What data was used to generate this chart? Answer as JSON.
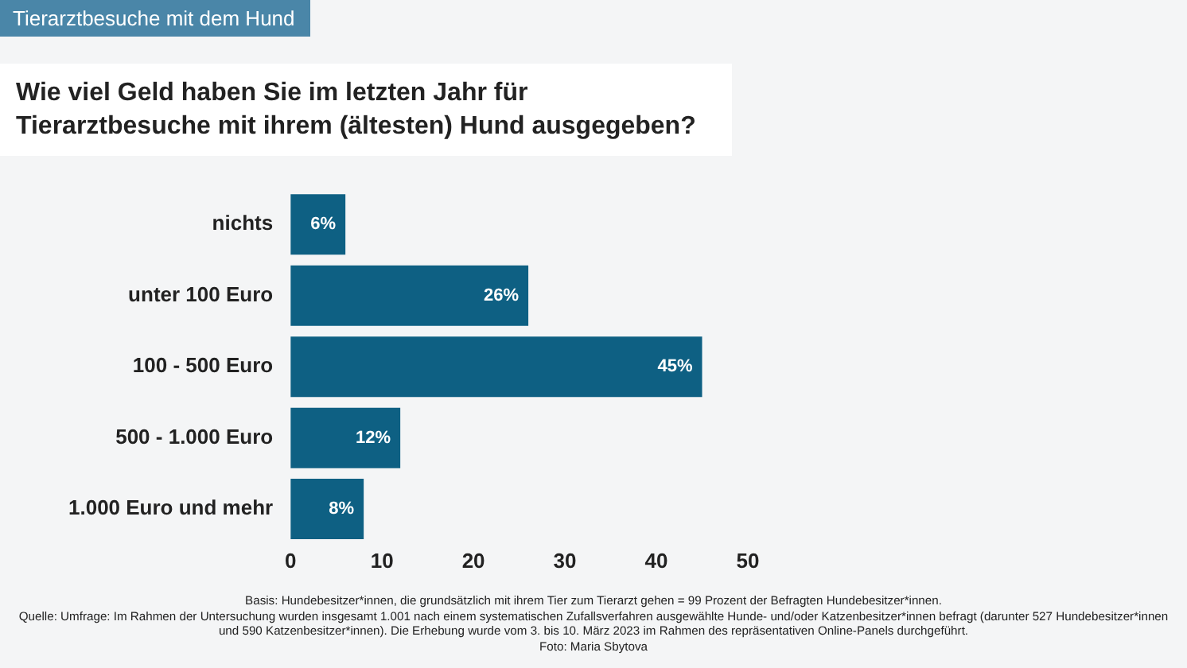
{
  "chart_data": {
    "type": "bar",
    "orientation": "horizontal",
    "subtitle": "Tierarztbesuche mit dem Hund",
    "title": "Wie viel Geld haben Sie im letzten Jahr für Tierarztbesuche mit ihrem (ältesten) Hund ausgegeben?",
    "categories": [
      "nichts",
      "unter 100 Euro",
      "100 - 500 Euro",
      "500 - 1.000 Euro",
      "1.000 Euro und mehr"
    ],
    "values": [
      6,
      26,
      45,
      12,
      8
    ],
    "value_labels": [
      "6%",
      "26%",
      "45%",
      "12%",
      "8%"
    ],
    "color": "#0e6083",
    "xlim": [
      0,
      50
    ],
    "xticks": [
      0,
      10,
      20,
      30,
      40,
      50
    ],
    "annotations": [
      "Basis: Hundebesitzer*innen, die grundsätzlich mit ihrem Tier zum Tierarzt gehen = 99 Prozent der Befragten Hundebesitzer*innen.",
      "Quelle: Umfrage: Im Rahmen der Untersuchung wurden insgesamt 1.001 nach einem systematischen Zufallsverfahren ausgewählte Hunde- und/oder Katzenbesitzer*innen befragt (darunter 527 Hundebesitzer*innen und 590 Katzenbesitzer*innen). Die Erhebung wurde vom 3. bis 10. März 2023 im Rahmen des repräsentativen Online-Panels durchgeführt.",
      "Foto: Maria Sbytova"
    ]
  }
}
